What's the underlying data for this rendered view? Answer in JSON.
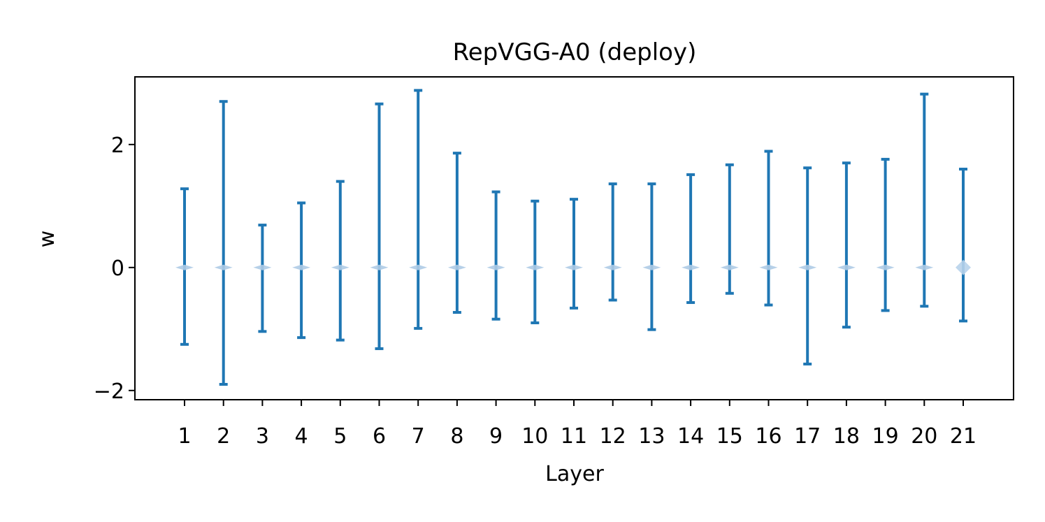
{
  "chart_data": {
    "type": "errorbar",
    "title": "RepVGG-A0 (deploy)",
    "xlabel": "Layer",
    "ylabel": "w",
    "categories": [
      "1",
      "2",
      "3",
      "4",
      "5",
      "6",
      "7",
      "8",
      "9",
      "10",
      "11",
      "12",
      "13",
      "14",
      "15",
      "16",
      "17",
      "18",
      "19",
      "20",
      "21"
    ],
    "center": [
      0,
      0,
      0,
      0,
      0,
      0,
      0,
      0,
      0,
      0,
      0,
      0,
      0,
      0,
      0,
      0,
      0,
      0,
      0,
      0,
      0
    ],
    "max": [
      1.28,
      2.7,
      0.69,
      1.05,
      1.4,
      2.66,
      2.88,
      1.86,
      1.23,
      1.08,
      1.11,
      1.36,
      1.36,
      1.51,
      1.67,
      1.89,
      1.62,
      1.7,
      1.76,
      2.82,
      1.6
    ],
    "min": [
      -1.25,
      -1.9,
      -1.04,
      -1.14,
      -1.18,
      -1.32,
      -0.99,
      -0.73,
      -0.84,
      -0.9,
      -0.66,
      -0.53,
      -1.01,
      -0.57,
      -0.42,
      -0.61,
      -1.57,
      -0.97,
      -0.7,
      -0.63,
      -0.87
    ],
    "yticks": [
      "−2",
      "0",
      "2"
    ],
    "ytick_values": [
      -2,
      0,
      2
    ],
    "ylim": [
      -2.15,
      3.1
    ],
    "grid": false,
    "colors": {
      "bar": "#1f77b4",
      "marker": "#aecbe6",
      "marker_last": "#b8d3eb"
    }
  }
}
